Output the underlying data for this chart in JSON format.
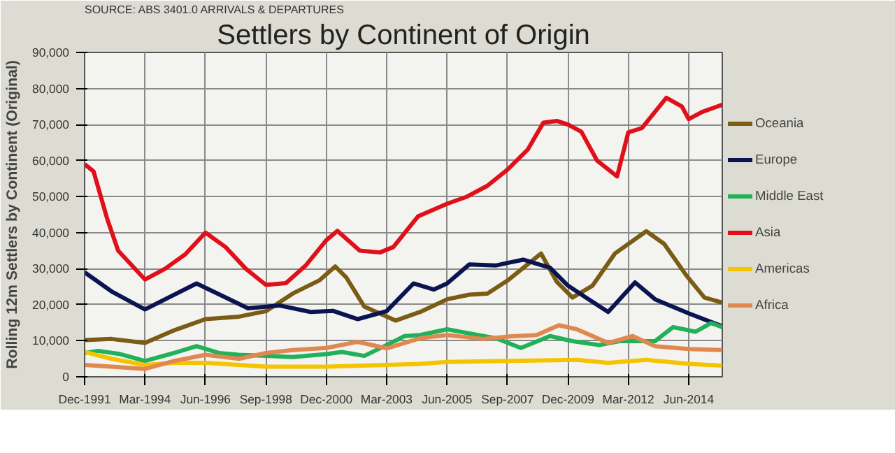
{
  "chart_data": {
    "type": "line",
    "title": "Settlers by Continent of Origin",
    "ylabel": "Rolling 12m Settlers by Continent (Original)",
    "annotations": [
      "SOURCE: ABS 3401.0 ARRIVALS & DEPARTURES"
    ],
    "xlim": [
      "1991-12",
      "2015-09"
    ],
    "xticks": [
      {
        "value": "1991-12",
        "label": "Dec-1991"
      },
      {
        "value": "1994-03",
        "label": "Mar-1994"
      },
      {
        "value": "1996-06",
        "label": "Jun-1996"
      },
      {
        "value": "1998-09",
        "label": "Sep-1998"
      },
      {
        "value": "2000-12",
        "label": "Dec-2000"
      },
      {
        "value": "2003-03",
        "label": "Mar-2003"
      },
      {
        "value": "2005-06",
        "label": "Jun-2005"
      },
      {
        "value": "2007-09",
        "label": "Sep-2007"
      },
      {
        "value": "2009-12",
        "label": "Dec-2009"
      },
      {
        "value": "2012-03",
        "label": "Mar-2012"
      },
      {
        "value": "2014-06",
        "label": "Jun-2014"
      }
    ],
    "ylim": [
      0,
      90000
    ],
    "yticks": [
      {
        "value": 0,
        "label": "0"
      },
      {
        "value": 10000,
        "label": "10,000"
      },
      {
        "value": 20000,
        "label": "20,000"
      },
      {
        "value": 30000,
        "label": "30,000"
      },
      {
        "value": 40000,
        "label": "40,000"
      },
      {
        "value": 50000,
        "label": "50,000"
      },
      {
        "value": 60000,
        "label": "60,000"
      },
      {
        "value": 70000,
        "label": "70,000"
      },
      {
        "value": 80000,
        "label": "80,000"
      },
      {
        "value": 90000,
        "label": "90,000"
      }
    ],
    "grid": true,
    "legend": "right",
    "marker": "none",
    "line_style": "solid",
    "series": [
      {
        "name": "Oceania",
        "color": "#7a5c14",
        "x": [
          "1991-12",
          "1992-12",
          "1994-03",
          "1995-04",
          "1996-06",
          "1997-09",
          "1998-09",
          "1999-09",
          "2000-09",
          "2001-04",
          "2001-09",
          "2002-05",
          "2003-07",
          "2004-06",
          "2005-06",
          "2006-04",
          "2006-12",
          "2007-09",
          "2008-12",
          "2009-07",
          "2010-02",
          "2010-11",
          "2011-09",
          "2012-11",
          "2013-07",
          "2014-05",
          "2015-01",
          "2015-09"
        ],
        "values": [
          10200,
          10500,
          9400,
          12900,
          16000,
          16700,
          18200,
          23100,
          26800,
          30600,
          27500,
          19500,
          15600,
          18000,
          21500,
          22800,
          23100,
          26700,
          34200,
          26400,
          22000,
          25300,
          34200,
          40400,
          36900,
          28100,
          22000,
          20600
        ]
      },
      {
        "name": "Europe",
        "color": "#0a1450",
        "x": [
          "1991-12",
          "1992-12",
          "1994-03",
          "1996-02",
          "1997-01",
          "1998-01",
          "1999-03",
          "2000-05",
          "2001-03",
          "2002-02",
          "2003-03",
          "2004-03",
          "2004-12",
          "2005-06",
          "2006-04",
          "2007-04",
          "2007-09",
          "2008-04",
          "2009-04",
          "2009-12",
          "2010-08",
          "2011-06",
          "2012-06",
          "2013-03",
          "2014-06",
          "2015-09"
        ],
        "values": [
          29000,
          23700,
          18700,
          25900,
          22600,
          19000,
          19800,
          18000,
          18300,
          16000,
          18200,
          25900,
          24200,
          25900,
          31200,
          30900,
          31600,
          32500,
          30300,
          25300,
          22000,
          18000,
          26200,
          21500,
          17600,
          14000
        ]
      },
      {
        "name": "Middle East",
        "color": "#22b05a",
        "x": [
          "1991-12",
          "1992-06",
          "1993-04",
          "1994-03",
          "1995-04",
          "1996-02",
          "1996-12",
          "1997-09",
          "1998-09",
          "1999-09",
          "2000-12",
          "2001-07",
          "2002-05",
          "2003-03",
          "2003-11",
          "2004-06",
          "2005-06",
          "2006-06",
          "2007-04",
          "2008-03",
          "2009-04",
          "2010-02",
          "2011-02",
          "2011-11",
          "2013-03",
          "2013-11",
          "2014-09",
          "2015-04",
          "2015-09"
        ],
        "values": [
          6600,
          7200,
          6300,
          4400,
          6600,
          8500,
          6600,
          6100,
          5800,
          5500,
          6300,
          6900,
          5800,
          8800,
          11300,
          11600,
          13200,
          11800,
          10700,
          8000,
          11300,
          9900,
          8800,
          9900,
          9900,
          13800,
          12500,
          14900,
          13800
        ]
      },
      {
        "name": "Asia",
        "color": "#e0101a",
        "x": [
          "1991-12",
          "1992-04",
          "1992-10",
          "1993-03",
          "1994-03",
          "1994-12",
          "1995-09",
          "1996-06",
          "1997-03",
          "1997-12",
          "1998-09",
          "1999-06",
          "2000-03",
          "2000-12",
          "2001-05",
          "2002-03",
          "2002-12",
          "2003-06",
          "2004-05",
          "2005-06",
          "2006-03",
          "2006-12",
          "2007-09",
          "2008-06",
          "2009-01",
          "2009-07",
          "2009-12",
          "2010-06",
          "2011-01",
          "2011-10",
          "2012-03",
          "2012-09",
          "2013-08",
          "2014-03",
          "2014-06",
          "2014-12",
          "2015-09"
        ],
        "values": [
          59000,
          57000,
          44000,
          35000,
          27000,
          30000,
          34000,
          40000,
          36000,
          30000,
          25500,
          26000,
          31000,
          37900,
          40500,
          35000,
          34500,
          36000,
          44500,
          48000,
          50000,
          53000,
          57500,
          63000,
          70500,
          71000,
          70000,
          68000,
          60000,
          55600,
          67800,
          69000,
          77400,
          75000,
          71500,
          73500,
          75500
        ]
      },
      {
        "name": "Americas",
        "color": "#f5c400",
        "x": [
          "1991-12",
          "1992-12",
          "1994-03",
          "1995-04",
          "1996-06",
          "1997-09",
          "1998-09",
          "2000-12",
          "2003-03",
          "2004-06",
          "2005-06",
          "2007-09",
          "2010-04",
          "2011-06",
          "2012-11",
          "2014-06",
          "2015-09"
        ],
        "values": [
          6900,
          5000,
          3300,
          3900,
          3900,
          3300,
          2800,
          2800,
          3300,
          3600,
          4100,
          4400,
          4700,
          3900,
          4700,
          3600,
          3100
        ]
      },
      {
        "name": "Africa",
        "color": "#e08850",
        "x": [
          "1991-12",
          "1992-12",
          "1994-03",
          "1995-04",
          "1996-06",
          "1997-09",
          "1998-09",
          "1999-09",
          "2000-12",
          "2002-02",
          "2003-03",
          "2004-06",
          "2005-06",
          "2006-10",
          "2007-10",
          "2008-10",
          "2009-08",
          "2010-04",
          "2011-06",
          "2012-05",
          "2013-03",
          "2014-06",
          "2015-09"
        ],
        "values": [
          3300,
          2800,
          2200,
          4400,
          6100,
          5000,
          6600,
          7400,
          8000,
          9700,
          7900,
          10700,
          11600,
          10500,
          11200,
          11600,
          14300,
          13200,
          9400,
          11300,
          8500,
          7700,
          7400
        ]
      }
    ]
  }
}
